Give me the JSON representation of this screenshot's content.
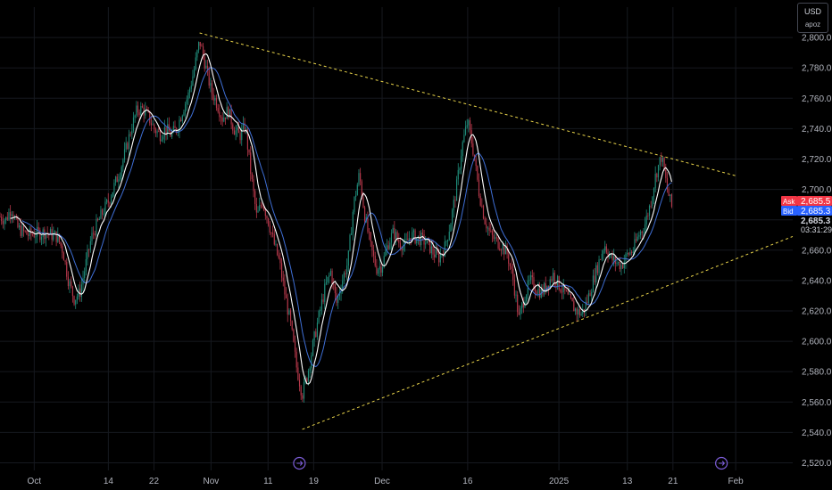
{
  "header": {
    "currency": "USD",
    "unit_selector": "apoz"
  },
  "colors": {
    "background": "#000000",
    "grid": "#16191f",
    "candle_up": "#1f8a78",
    "candle_down": "#b5384a",
    "ma_fast": "#ffffff",
    "ma_slow": "#3f6fd6",
    "trendline": "#e8d34a",
    "ask_label": "#f23645",
    "bid_label": "#2962ff"
  },
  "price_panel": {
    "ask_label": "Ask",
    "ask_value": "2,685.5",
    "bid_label": "Bid",
    "bid_value": "2,685.3",
    "last_price": "2,685.3",
    "countdown": "03:31:29"
  },
  "chart_data": {
    "type": "candlestick",
    "ylim": [
      2515,
      2820
    ],
    "y_ticks": [
      2520,
      2540,
      2560,
      2580,
      2600,
      2620,
      2640,
      2660,
      2680,
      2700,
      2720,
      2740,
      2760,
      2780,
      2800
    ],
    "y_tick_labels": [
      "2,520.0",
      "2,540.0",
      "2,560.0",
      "2,580.0",
      "2,600.0",
      "2,620.0",
      "2,640.0",
      "2,660.0",
      "2,680.0",
      "2,700.0",
      "2,720.0",
      "2,740.0",
      "2,760.0",
      "2,780.0",
      "2,800.0"
    ],
    "x_ticks": [
      {
        "label": "Oct",
        "day": 0
      },
      {
        "label": "14",
        "day": 13
      },
      {
        "label": "22",
        "day": 21
      },
      {
        "label": "Nov",
        "day": 31
      },
      {
        "label": "11",
        "day": 41
      },
      {
        "label": "19",
        "day": 49
      },
      {
        "label": "Dec",
        "day": 61
      },
      {
        "label": "16",
        "day": 76
      },
      {
        "label": "2025",
        "day": 92
      },
      {
        "label": "13",
        "day": 104
      },
      {
        "label": "21",
        "day": 112
      },
      {
        "label": "Feb",
        "day": 123
      }
    ],
    "x_start_day": -6,
    "x_end_day": 133,
    "price_path": [
      [
        -6,
        2682
      ],
      [
        -5,
        2680
      ],
      [
        -4,
        2688
      ],
      [
        -3,
        2675
      ],
      [
        -2,
        2672
      ],
      [
        -1,
        2670
      ],
      [
        0,
        2671
      ],
      [
        1,
        2671
      ],
      [
        2,
        2672
      ],
      [
        3,
        2670
      ],
      [
        4,
        2669
      ],
      [
        5,
        2660
      ],
      [
        6,
        2640
      ],
      [
        7,
        2628
      ],
      [
        8,
        2632
      ],
      [
        9,
        2650
      ],
      [
        10,
        2668
      ],
      [
        11,
        2677
      ],
      [
        12,
        2685
      ],
      [
        13,
        2692
      ],
      [
        14,
        2702
      ],
      [
        15,
        2712
      ],
      [
        16,
        2725
      ],
      [
        17,
        2740
      ],
      [
        18,
        2752
      ],
      [
        19,
        2753
      ],
      [
        20,
        2748
      ],
      [
        21,
        2740
      ],
      [
        22,
        2736
      ],
      [
        23,
        2740
      ],
      [
        24,
        2736
      ],
      [
        25,
        2740
      ],
      [
        26,
        2752
      ],
      [
        27,
        2762
      ],
      [
        28,
        2778
      ],
      [
        29,
        2798
      ],
      [
        30,
        2782
      ],
      [
        31,
        2765
      ],
      [
        32,
        2757
      ],
      [
        33,
        2747
      ],
      [
        34,
        2752
      ],
      [
        35,
        2740
      ],
      [
        36,
        2735
      ],
      [
        37,
        2742
      ],
      [
        38,
        2710
      ],
      [
        39,
        2682
      ],
      [
        40,
        2692
      ],
      [
        41,
        2680
      ],
      [
        42,
        2665
      ],
      [
        43,
        2652
      ],
      [
        44,
        2630
      ],
      [
        45,
        2610
      ],
      [
        46,
        2583
      ],
      [
        47,
        2565
      ],
      [
        48,
        2580
      ],
      [
        49,
        2600
      ],
      [
        50,
        2618
      ],
      [
        51,
        2635
      ],
      [
        52,
        2646
      ],
      [
        53,
        2625
      ],
      [
        54,
        2640
      ],
      [
        55,
        2652
      ],
      [
        56,
        2690
      ],
      [
        57,
        2710
      ],
      [
        58,
        2682
      ],
      [
        59,
        2662
      ],
      [
        60,
        2648
      ],
      [
        61,
        2650
      ],
      [
        62,
        2664
      ],
      [
        63,
        2672
      ],
      [
        64,
        2665
      ],
      [
        65,
        2663
      ],
      [
        66,
        2670
      ],
      [
        67,
        2668
      ],
      [
        68,
        2667
      ],
      [
        69,
        2664
      ],
      [
        70,
        2658
      ],
      [
        71,
        2655
      ],
      [
        72,
        2662
      ],
      [
        73,
        2678
      ],
      [
        74,
        2700
      ],
      [
        75,
        2728
      ],
      [
        76,
        2745
      ],
      [
        77,
        2725
      ],
      [
        78,
        2698
      ],
      [
        79,
        2680
      ],
      [
        80,
        2670
      ],
      [
        81,
        2666
      ],
      [
        82,
        2663
      ],
      [
        83,
        2657
      ],
      [
        84,
        2640
      ],
      [
        85,
        2615
      ],
      [
        86,
        2630
      ],
      [
        87,
        2640
      ],
      [
        88,
        2635
      ],
      [
        89,
        2632
      ],
      [
        90,
        2638
      ],
      [
        91,
        2644
      ],
      [
        92,
        2637
      ],
      [
        93,
        2632
      ],
      [
        94,
        2626
      ],
      [
        95,
        2620
      ],
      [
        96,
        2618
      ],
      [
        97,
        2627
      ],
      [
        98,
        2640
      ],
      [
        99,
        2652
      ],
      [
        100,
        2664
      ],
      [
        101,
        2655
      ],
      [
        102,
        2652
      ],
      [
        103,
        2650
      ],
      [
        104,
        2657
      ],
      [
        105,
        2660
      ],
      [
        106,
        2670
      ],
      [
        107,
        2676
      ],
      [
        108,
        2690
      ],
      [
        109,
        2710
      ],
      [
        110,
        2722
      ],
      [
        111,
        2700
      ],
      [
        112,
        2685
      ]
    ],
    "trendlines": [
      {
        "name": "upper",
        "from": [
          29,
          2803
        ],
        "to": [
          123,
          2709
        ],
        "style": "dashed"
      },
      {
        "name": "lower",
        "from": [
          47,
          2542
        ],
        "to": [
          133,
          2669
        ],
        "style": "dashed"
      }
    ],
    "grid": true
  }
}
